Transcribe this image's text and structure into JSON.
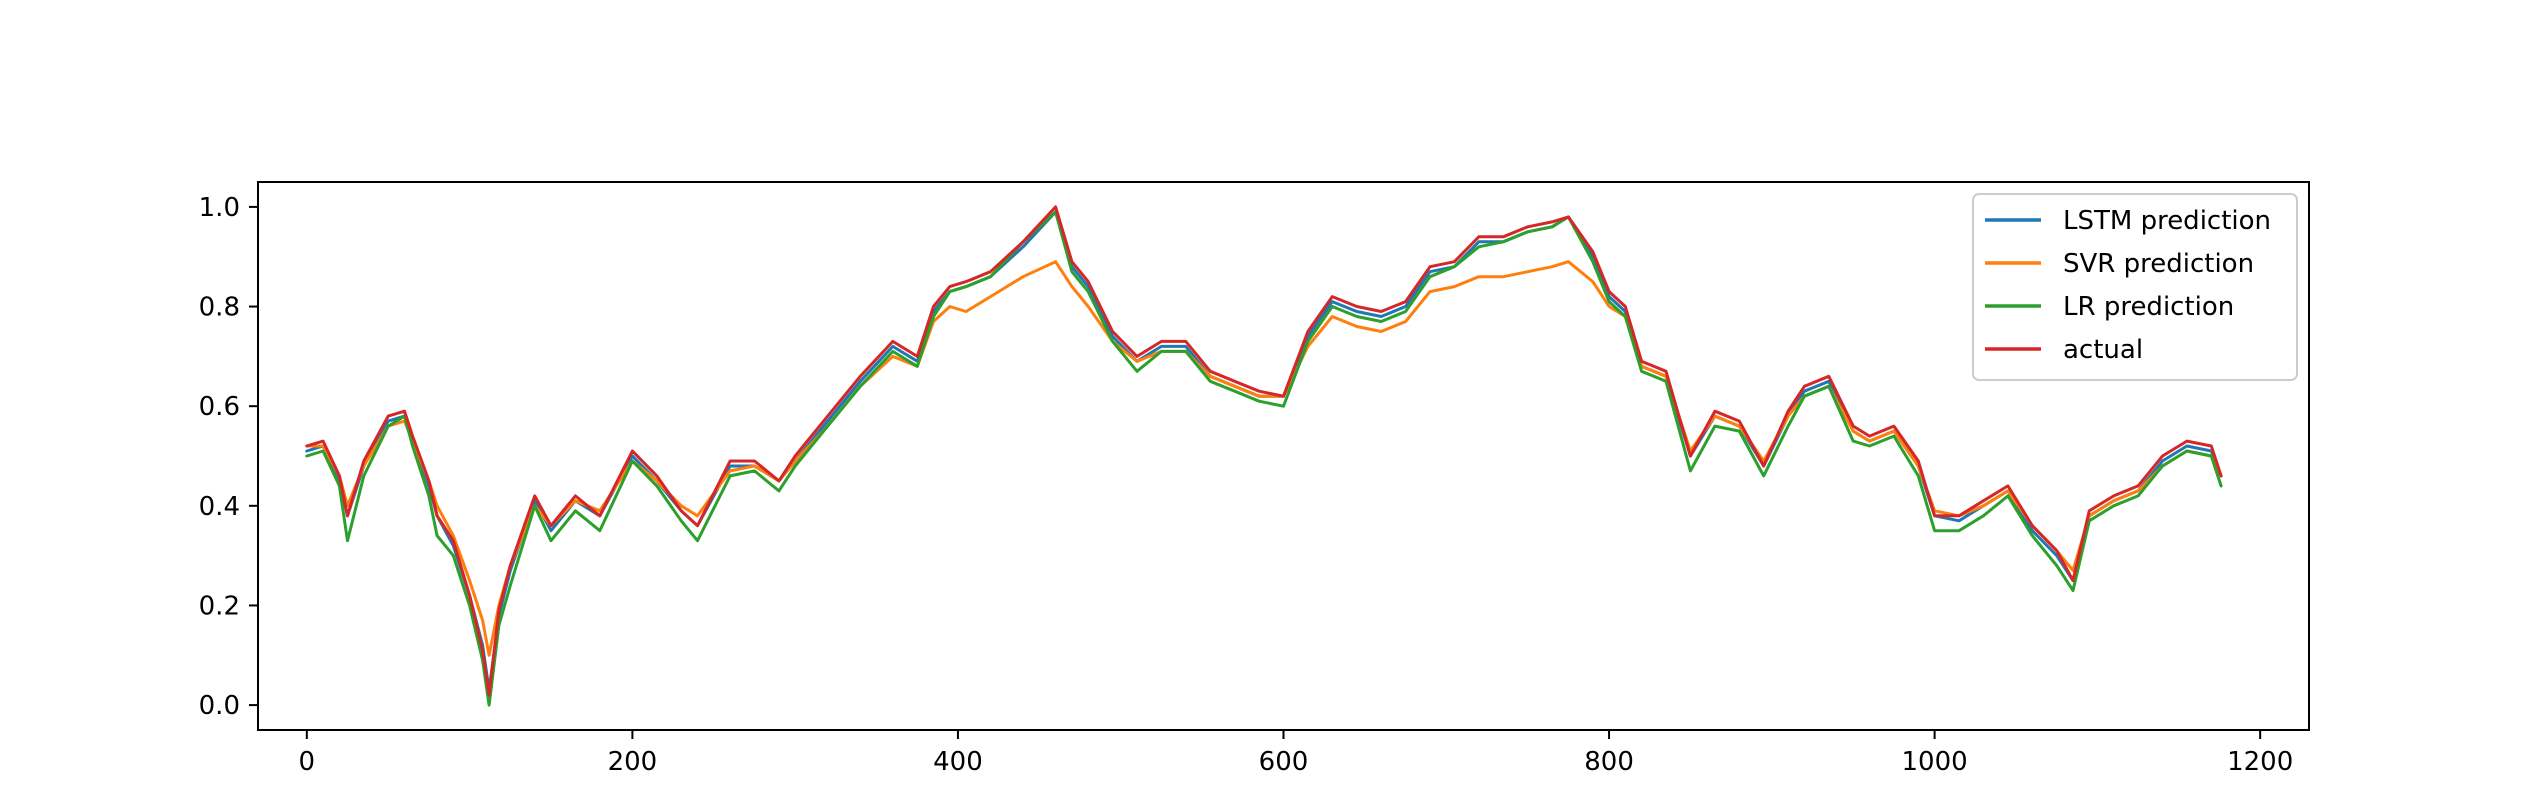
{
  "chart_data": {
    "type": "line",
    "title": "",
    "xlabel": "",
    "ylabel": "",
    "xlim": [
      -30,
      1230
    ],
    "ylim": [
      -0.05,
      1.05
    ],
    "xticks": [
      0,
      200,
      400,
      600,
      800,
      1000,
      1200
    ],
    "xtick_labels": [
      "0",
      "200",
      "400",
      "600",
      "800",
      "1000",
      "1200"
    ],
    "yticks": [
      0.0,
      0.2,
      0.4,
      0.6,
      0.8,
      1.0
    ],
    "ytick_labels": [
      "0.0",
      "0.2",
      "0.4",
      "0.6",
      "0.8",
      "1.0"
    ],
    "grid": false,
    "legend_position": "top-right",
    "x": [
      0,
      10,
      20,
      25,
      35,
      50,
      60,
      65,
      75,
      80,
      90,
      100,
      108,
      112,
      118,
      125,
      140,
      150,
      165,
      180,
      200,
      215,
      230,
      240,
      260,
      275,
      290,
      300,
      320,
      340,
      360,
      375,
      385,
      395,
      405,
      420,
      440,
      460,
      470,
      480,
      495,
      510,
      525,
      540,
      555,
      570,
      585,
      600,
      615,
      630,
      645,
      660,
      675,
      690,
      705,
      720,
      735,
      750,
      765,
      775,
      790,
      800,
      810,
      820,
      835,
      850,
      865,
      880,
      895,
      910,
      920,
      935,
      950,
      960,
      975,
      990,
      1000,
      1015,
      1030,
      1045,
      1060,
      1075,
      1085,
      1095,
      1110,
      1125,
      1140,
      1155,
      1170,
      1176
    ],
    "series": [
      {
        "name": "LSTM prediction",
        "color": "#1f77b4",
        "values": [
          0.51,
          0.52,
          0.45,
          0.38,
          0.48,
          0.57,
          0.58,
          0.53,
          0.44,
          0.38,
          0.32,
          0.22,
          0.12,
          0.03,
          0.18,
          0.27,
          0.41,
          0.35,
          0.41,
          0.38,
          0.5,
          0.45,
          0.39,
          0.36,
          0.48,
          0.48,
          0.45,
          0.49,
          0.57,
          0.65,
          0.72,
          0.69,
          0.79,
          0.83,
          0.84,
          0.86,
          0.92,
          0.99,
          0.88,
          0.84,
          0.74,
          0.69,
          0.72,
          0.72,
          0.66,
          0.64,
          0.62,
          0.62,
          0.74,
          0.81,
          0.79,
          0.78,
          0.8,
          0.87,
          0.88,
          0.93,
          0.93,
          0.95,
          0.96,
          0.98,
          0.9,
          0.82,
          0.79,
          0.68,
          0.66,
          0.5,
          0.58,
          0.56,
          0.48,
          0.58,
          0.63,
          0.65,
          0.55,
          0.53,
          0.55,
          0.48,
          0.38,
          0.37,
          0.4,
          0.43,
          0.35,
          0.3,
          0.25,
          0.38,
          0.41,
          0.43,
          0.49,
          0.52,
          0.51,
          0.46
        ]
      },
      {
        "name": "SVR prediction",
        "color": "#ff7f0e",
        "values": [
          0.52,
          0.52,
          0.46,
          0.4,
          0.48,
          0.56,
          0.57,
          0.53,
          0.45,
          0.4,
          0.34,
          0.25,
          0.17,
          0.1,
          0.2,
          0.28,
          0.4,
          0.36,
          0.41,
          0.39,
          0.49,
          0.45,
          0.4,
          0.38,
          0.47,
          0.48,
          0.45,
          0.49,
          0.56,
          0.64,
          0.7,
          0.68,
          0.77,
          0.8,
          0.79,
          0.82,
          0.86,
          0.89,
          0.84,
          0.8,
          0.73,
          0.69,
          0.71,
          0.71,
          0.66,
          0.64,
          0.62,
          0.62,
          0.72,
          0.78,
          0.76,
          0.75,
          0.77,
          0.83,
          0.84,
          0.86,
          0.86,
          0.87,
          0.88,
          0.89,
          0.85,
          0.8,
          0.78,
          0.68,
          0.66,
          0.51,
          0.58,
          0.56,
          0.49,
          0.58,
          0.62,
          0.64,
          0.55,
          0.53,
          0.55,
          0.48,
          0.39,
          0.38,
          0.4,
          0.43,
          0.36,
          0.31,
          0.27,
          0.38,
          0.41,
          0.43,
          0.48,
          0.51,
          0.5,
          0.46
        ]
      },
      {
        "name": "LR prediction",
        "color": "#2ca02c",
        "values": [
          0.5,
          0.51,
          0.44,
          0.33,
          0.46,
          0.56,
          0.58,
          0.52,
          0.42,
          0.34,
          0.3,
          0.2,
          0.09,
          0.0,
          0.16,
          0.24,
          0.4,
          0.33,
          0.39,
          0.35,
          0.49,
          0.44,
          0.37,
          0.33,
          0.46,
          0.47,
          0.43,
          0.48,
          0.56,
          0.64,
          0.71,
          0.68,
          0.78,
          0.83,
          0.84,
          0.86,
          0.93,
          0.99,
          0.87,
          0.83,
          0.73,
          0.67,
          0.71,
          0.71,
          0.65,
          0.63,
          0.61,
          0.6,
          0.73,
          0.8,
          0.78,
          0.77,
          0.79,
          0.86,
          0.88,
          0.92,
          0.93,
          0.95,
          0.96,
          0.98,
          0.89,
          0.81,
          0.78,
          0.67,
          0.65,
          0.47,
          0.56,
          0.55,
          0.46,
          0.56,
          0.62,
          0.64,
          0.53,
          0.52,
          0.54,
          0.46,
          0.35,
          0.35,
          0.38,
          0.42,
          0.34,
          0.28,
          0.23,
          0.37,
          0.4,
          0.42,
          0.48,
          0.51,
          0.5,
          0.44
        ]
      },
      {
        "name": "actual",
        "color": "#d62728",
        "values": [
          0.52,
          0.53,
          0.46,
          0.38,
          0.49,
          0.58,
          0.59,
          0.54,
          0.45,
          0.38,
          0.33,
          0.22,
          0.11,
          0.02,
          0.19,
          0.28,
          0.42,
          0.36,
          0.42,
          0.38,
          0.51,
          0.46,
          0.39,
          0.36,
          0.49,
          0.49,
          0.45,
          0.5,
          0.58,
          0.66,
          0.73,
          0.7,
          0.8,
          0.84,
          0.85,
          0.87,
          0.93,
          1.0,
          0.89,
          0.85,
          0.75,
          0.7,
          0.73,
          0.73,
          0.67,
          0.65,
          0.63,
          0.62,
          0.75,
          0.82,
          0.8,
          0.79,
          0.81,
          0.88,
          0.89,
          0.94,
          0.94,
          0.96,
          0.97,
          0.98,
          0.91,
          0.83,
          0.8,
          0.69,
          0.67,
          0.5,
          0.59,
          0.57,
          0.48,
          0.59,
          0.64,
          0.66,
          0.56,
          0.54,
          0.56,
          0.49,
          0.38,
          0.38,
          0.41,
          0.44,
          0.36,
          0.31,
          0.25,
          0.39,
          0.42,
          0.44,
          0.5,
          0.53,
          0.52,
          0.46
        ]
      }
    ]
  }
}
